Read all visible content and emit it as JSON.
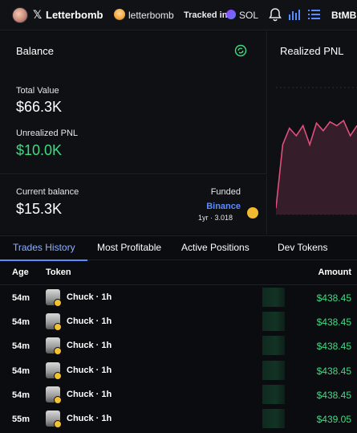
{
  "header": {
    "handle": "Letterbomb",
    "x_label": "𝕏",
    "pfp_name": "letterbomb",
    "tracked_label": "Tracked in",
    "chain": "SOL",
    "right_label": "BtMBK"
  },
  "balance": {
    "title": "Balance",
    "total_value_label": "Total Value",
    "total_value": "$66.3K",
    "unrealized_label": "Unrealized PNL",
    "unrealized_value": "$10.0K"
  },
  "current": {
    "label": "Current balance",
    "value": "$15.3K",
    "funded_label": "Funded",
    "funded_by": "Binance",
    "funded_meta": "1yr · 3.018"
  },
  "pnl": {
    "title": "Realized PNL",
    "series": [
      0.05,
      0.55,
      0.68,
      0.62,
      0.7,
      0.55,
      0.72,
      0.66,
      0.73,
      0.7,
      0.74,
      0.62,
      0.7
    ]
  },
  "tabs": [
    "Trades History",
    "Most Profitable",
    "Active Positions",
    "Dev Tokens"
  ],
  "table": {
    "headers": {
      "age": "Age",
      "token": "Token",
      "amount": "Amount"
    },
    "rows": [
      {
        "age": "54m",
        "token": "Chuck · 1h",
        "amount": "$438.45"
      },
      {
        "age": "54m",
        "token": "Chuck · 1h",
        "amount": "$438.45"
      },
      {
        "age": "54m",
        "token": "Chuck · 1h",
        "amount": "$438.45"
      },
      {
        "age": "54m",
        "token": "Chuck · 1h",
        "amount": "$438.45"
      },
      {
        "age": "54m",
        "token": "Chuck · 1h",
        "amount": "$438.45"
      },
      {
        "age": "55m",
        "token": "Chuck · 1h",
        "amount": "$439.05"
      }
    ]
  },
  "colors": {
    "accent": "#5b8cff",
    "positive": "#3ddc84",
    "pnl_line": "#e0507a"
  }
}
